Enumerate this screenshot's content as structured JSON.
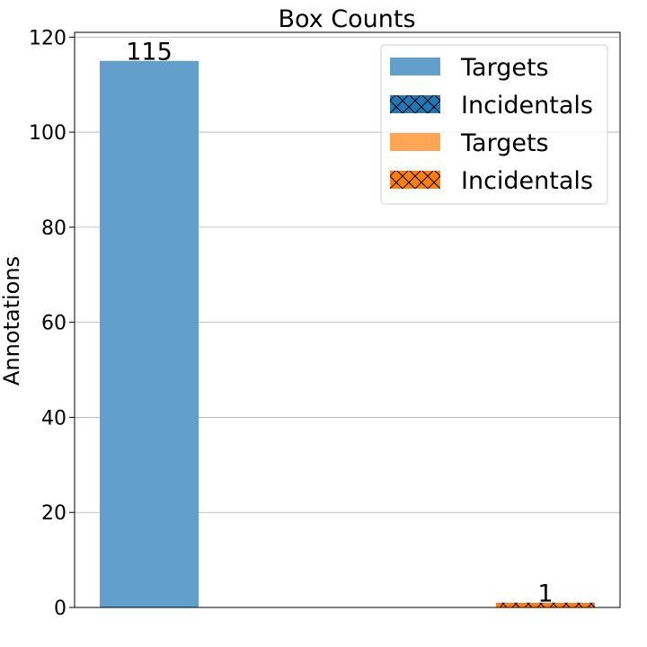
{
  "chart_data": {
    "type": "bar",
    "title": "Box Counts",
    "xlabel": "",
    "ylabel": "Annotations",
    "ylim": [
      0,
      121
    ],
    "yticks": [
      0,
      20,
      40,
      60,
      80,
      100,
      120
    ],
    "grid": "y",
    "legend_position": "top-right",
    "series": [
      {
        "name": "Targets",
        "color": "#62a0cb",
        "hatch": false,
        "slot": 0,
        "value": 115,
        "label": "115"
      },
      {
        "name": "Incidentals",
        "color": "#1f77b4",
        "hatch": true,
        "slot": 0,
        "value": 0,
        "label": ""
      },
      {
        "name": "Targets",
        "color": "#ffa556",
        "hatch": false,
        "slot": 1,
        "value": 0,
        "label": ""
      },
      {
        "name": "Incidentals",
        "color": "#ff7f0e",
        "hatch": true,
        "slot": 1,
        "value": 1,
        "label": "1"
      }
    ]
  }
}
